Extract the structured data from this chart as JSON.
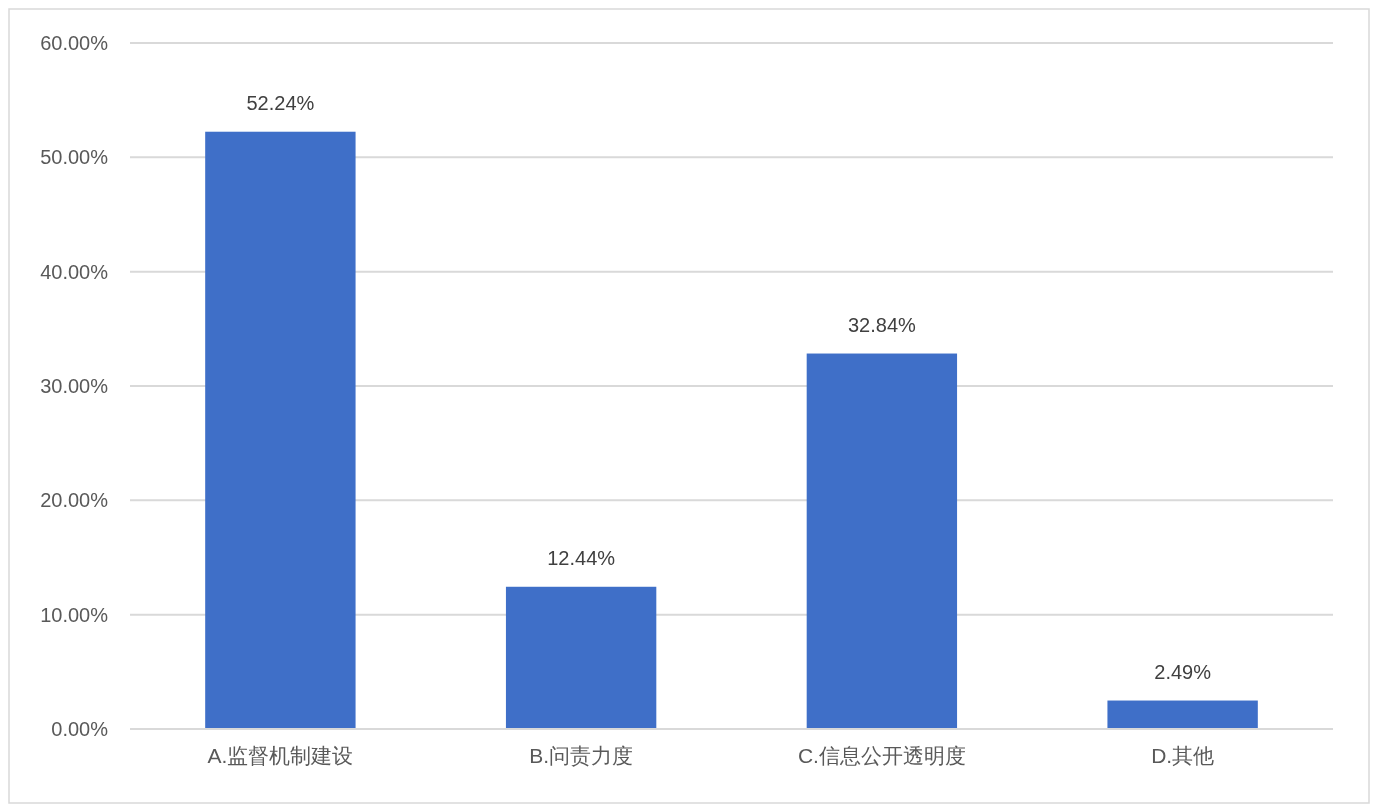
{
  "chart_data": {
    "type": "bar",
    "categories": [
      "A.监督机制建设",
      "B.问责力度",
      "C.信息公开透明度",
      "D.其他"
    ],
    "values": [
      52.24,
      12.44,
      32.84,
      2.49
    ],
    "value_labels": [
      "52.24%",
      "12.44%",
      "32.84%",
      "2.49%"
    ],
    "color": "#3f6fc8",
    "ylim": [
      0,
      60
    ],
    "yticks": [
      {
        "value": 0,
        "label": "0.00%"
      },
      {
        "value": 10,
        "label": "10.00%"
      },
      {
        "value": 20,
        "label": "20.00%"
      },
      {
        "value": 30,
        "label": "30.00%"
      },
      {
        "value": 40,
        "label": "40.00%"
      },
      {
        "value": 50,
        "label": "50.00%"
      },
      {
        "value": 60,
        "label": "60.00%"
      }
    ],
    "grid": "y"
  }
}
